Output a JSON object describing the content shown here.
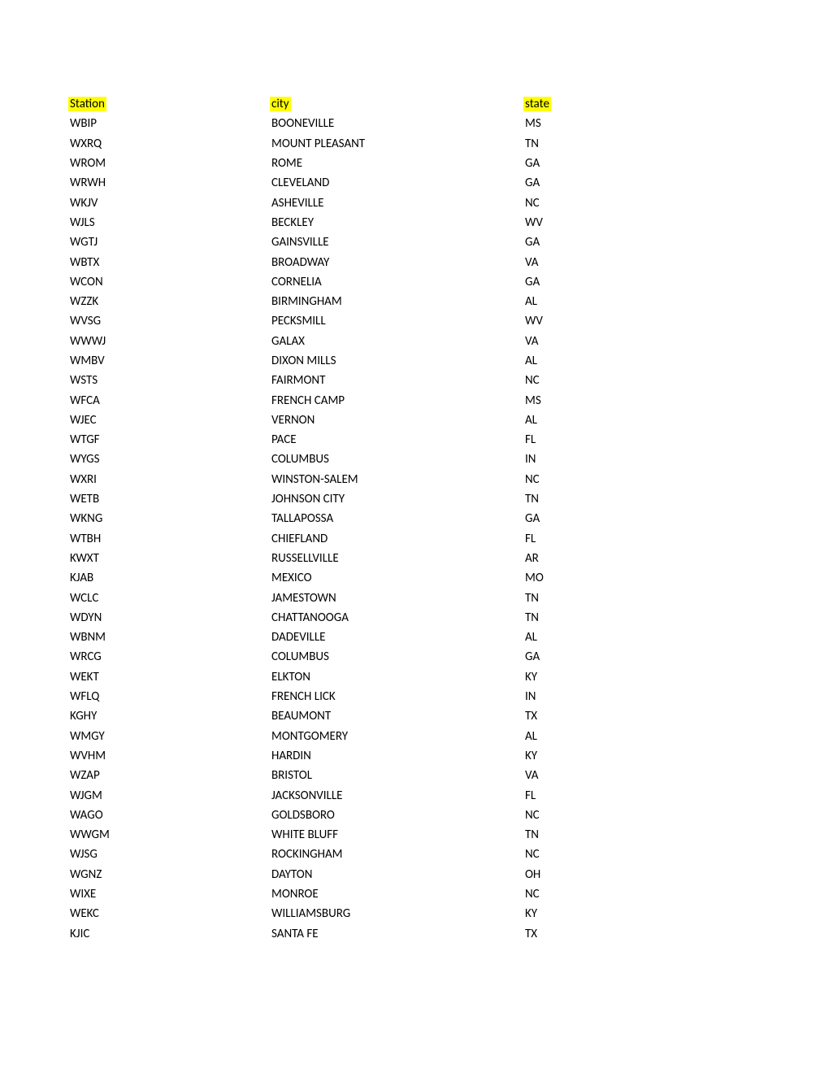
{
  "headers": {
    "station": "Station",
    "city": "city",
    "state": "state"
  },
  "rows": [
    {
      "station": "WBIP",
      "city": "BOONEVILLE",
      "state": "MS"
    },
    {
      "station": "WXRQ",
      "city": "MOUNT PLEASANT",
      "state": "TN"
    },
    {
      "station": "WROM",
      "city": "ROME",
      "state": "GA"
    },
    {
      "station": "WRWH",
      "city": "CLEVELAND",
      "state": "GA"
    },
    {
      "station": "WKJV",
      "city": "ASHEVILLE",
      "state": "NC"
    },
    {
      "station": "WJLS",
      "city": "BECKLEY",
      "state": "WV"
    },
    {
      "station": "WGTJ",
      "city": "GAINSVILLE",
      "state": "GA"
    },
    {
      "station": "WBTX",
      "city": "BROADWAY",
      "state": "VA"
    },
    {
      "station": "WCON",
      "city": "CORNELIA",
      "state": "GA"
    },
    {
      "station": "WZZK",
      "city": "BIRMINGHAM",
      "state": "AL"
    },
    {
      "station": "WVSG",
      "city": "PECKSMILL",
      "state": "WV"
    },
    {
      "station": "WWWJ",
      "city": "GALAX",
      "state": "VA"
    },
    {
      "station": "WMBV",
      "city": "DIXON MILLS",
      "state": "AL"
    },
    {
      "station": "WSTS",
      "city": "FAIRMONT",
      "state": "NC"
    },
    {
      "station": "WFCA",
      "city": "FRENCH CAMP",
      "state": "MS"
    },
    {
      "station": "WJEC",
      "city": "VERNON",
      "state": "AL"
    },
    {
      "station": "WTGF",
      "city": "PACE",
      "state": "FL"
    },
    {
      "station": "WYGS",
      "city": "COLUMBUS",
      "state": "IN"
    },
    {
      "station": "WXRI",
      "city": "WINSTON-SALEM",
      "state": "NC"
    },
    {
      "station": "WETB",
      "city": "JOHNSON CITY",
      "state": "TN"
    },
    {
      "station": "WKNG",
      "city": "TALLAPOSSA",
      "state": "GA"
    },
    {
      "station": "WTBH",
      "city": "CHIEFLAND",
      "state": "FL"
    },
    {
      "station": "KWXT",
      "city": "RUSSELLVILLE",
      "state": "AR"
    },
    {
      "station": "KJAB",
      "city": "MEXICO",
      "state": "MO"
    },
    {
      "station": "WCLC",
      "city": "JAMESTOWN",
      "state": "TN"
    },
    {
      "station": "WDYN",
      "city": "CHATTANOOGA",
      "state": "TN"
    },
    {
      "station": "WBNM",
      "city": "DADEVILLE",
      "state": "AL"
    },
    {
      "station": "WRCG",
      "city": "COLUMBUS",
      "state": "GA"
    },
    {
      "station": "WEKT",
      "city": "ELKTON",
      "state": "KY"
    },
    {
      "station": "WFLQ",
      "city": "FRENCH LICK",
      "state": "IN"
    },
    {
      "station": "KGHY",
      "city": "BEAUMONT",
      "state": "TX"
    },
    {
      "station": "WMGY",
      "city": "MONTGOMERY",
      "state": "AL"
    },
    {
      "station": "WVHM",
      "city": "HARDIN",
      "state": "KY"
    },
    {
      "station": "WZAP",
      "city": "BRISTOL",
      "state": "VA"
    },
    {
      "station": "WJGM",
      "city": "JACKSONVILLE",
      "state": "FL"
    },
    {
      "station": "WAGO",
      "city": "GOLDSBORO",
      "state": "NC"
    },
    {
      "station": "WWGM",
      "city": "WHITE BLUFF",
      "state": "TN"
    },
    {
      "station": "WJSG",
      "city": "ROCKINGHAM",
      "state": "NC"
    },
    {
      "station": "WGNZ",
      "city": "DAYTON",
      "state": "OH"
    },
    {
      "station": "WIXE",
      "city": "MONROE",
      "state": "NC"
    },
    {
      "station": "WEKC",
      "city": "WILLIAMSBURG",
      "state": "KY"
    },
    {
      "station": "KJIC",
      "city": "SANTA FE",
      "state": "TX"
    }
  ],
  "styling": {
    "highlight_color": "#ffff00",
    "background_color": "#ffffff",
    "text_color": "#000000",
    "font_family": "Calibri",
    "font_size": 15,
    "row_height": 24.3,
    "col_widths": {
      "station": 248,
      "city": 312,
      "state": 100
    }
  }
}
